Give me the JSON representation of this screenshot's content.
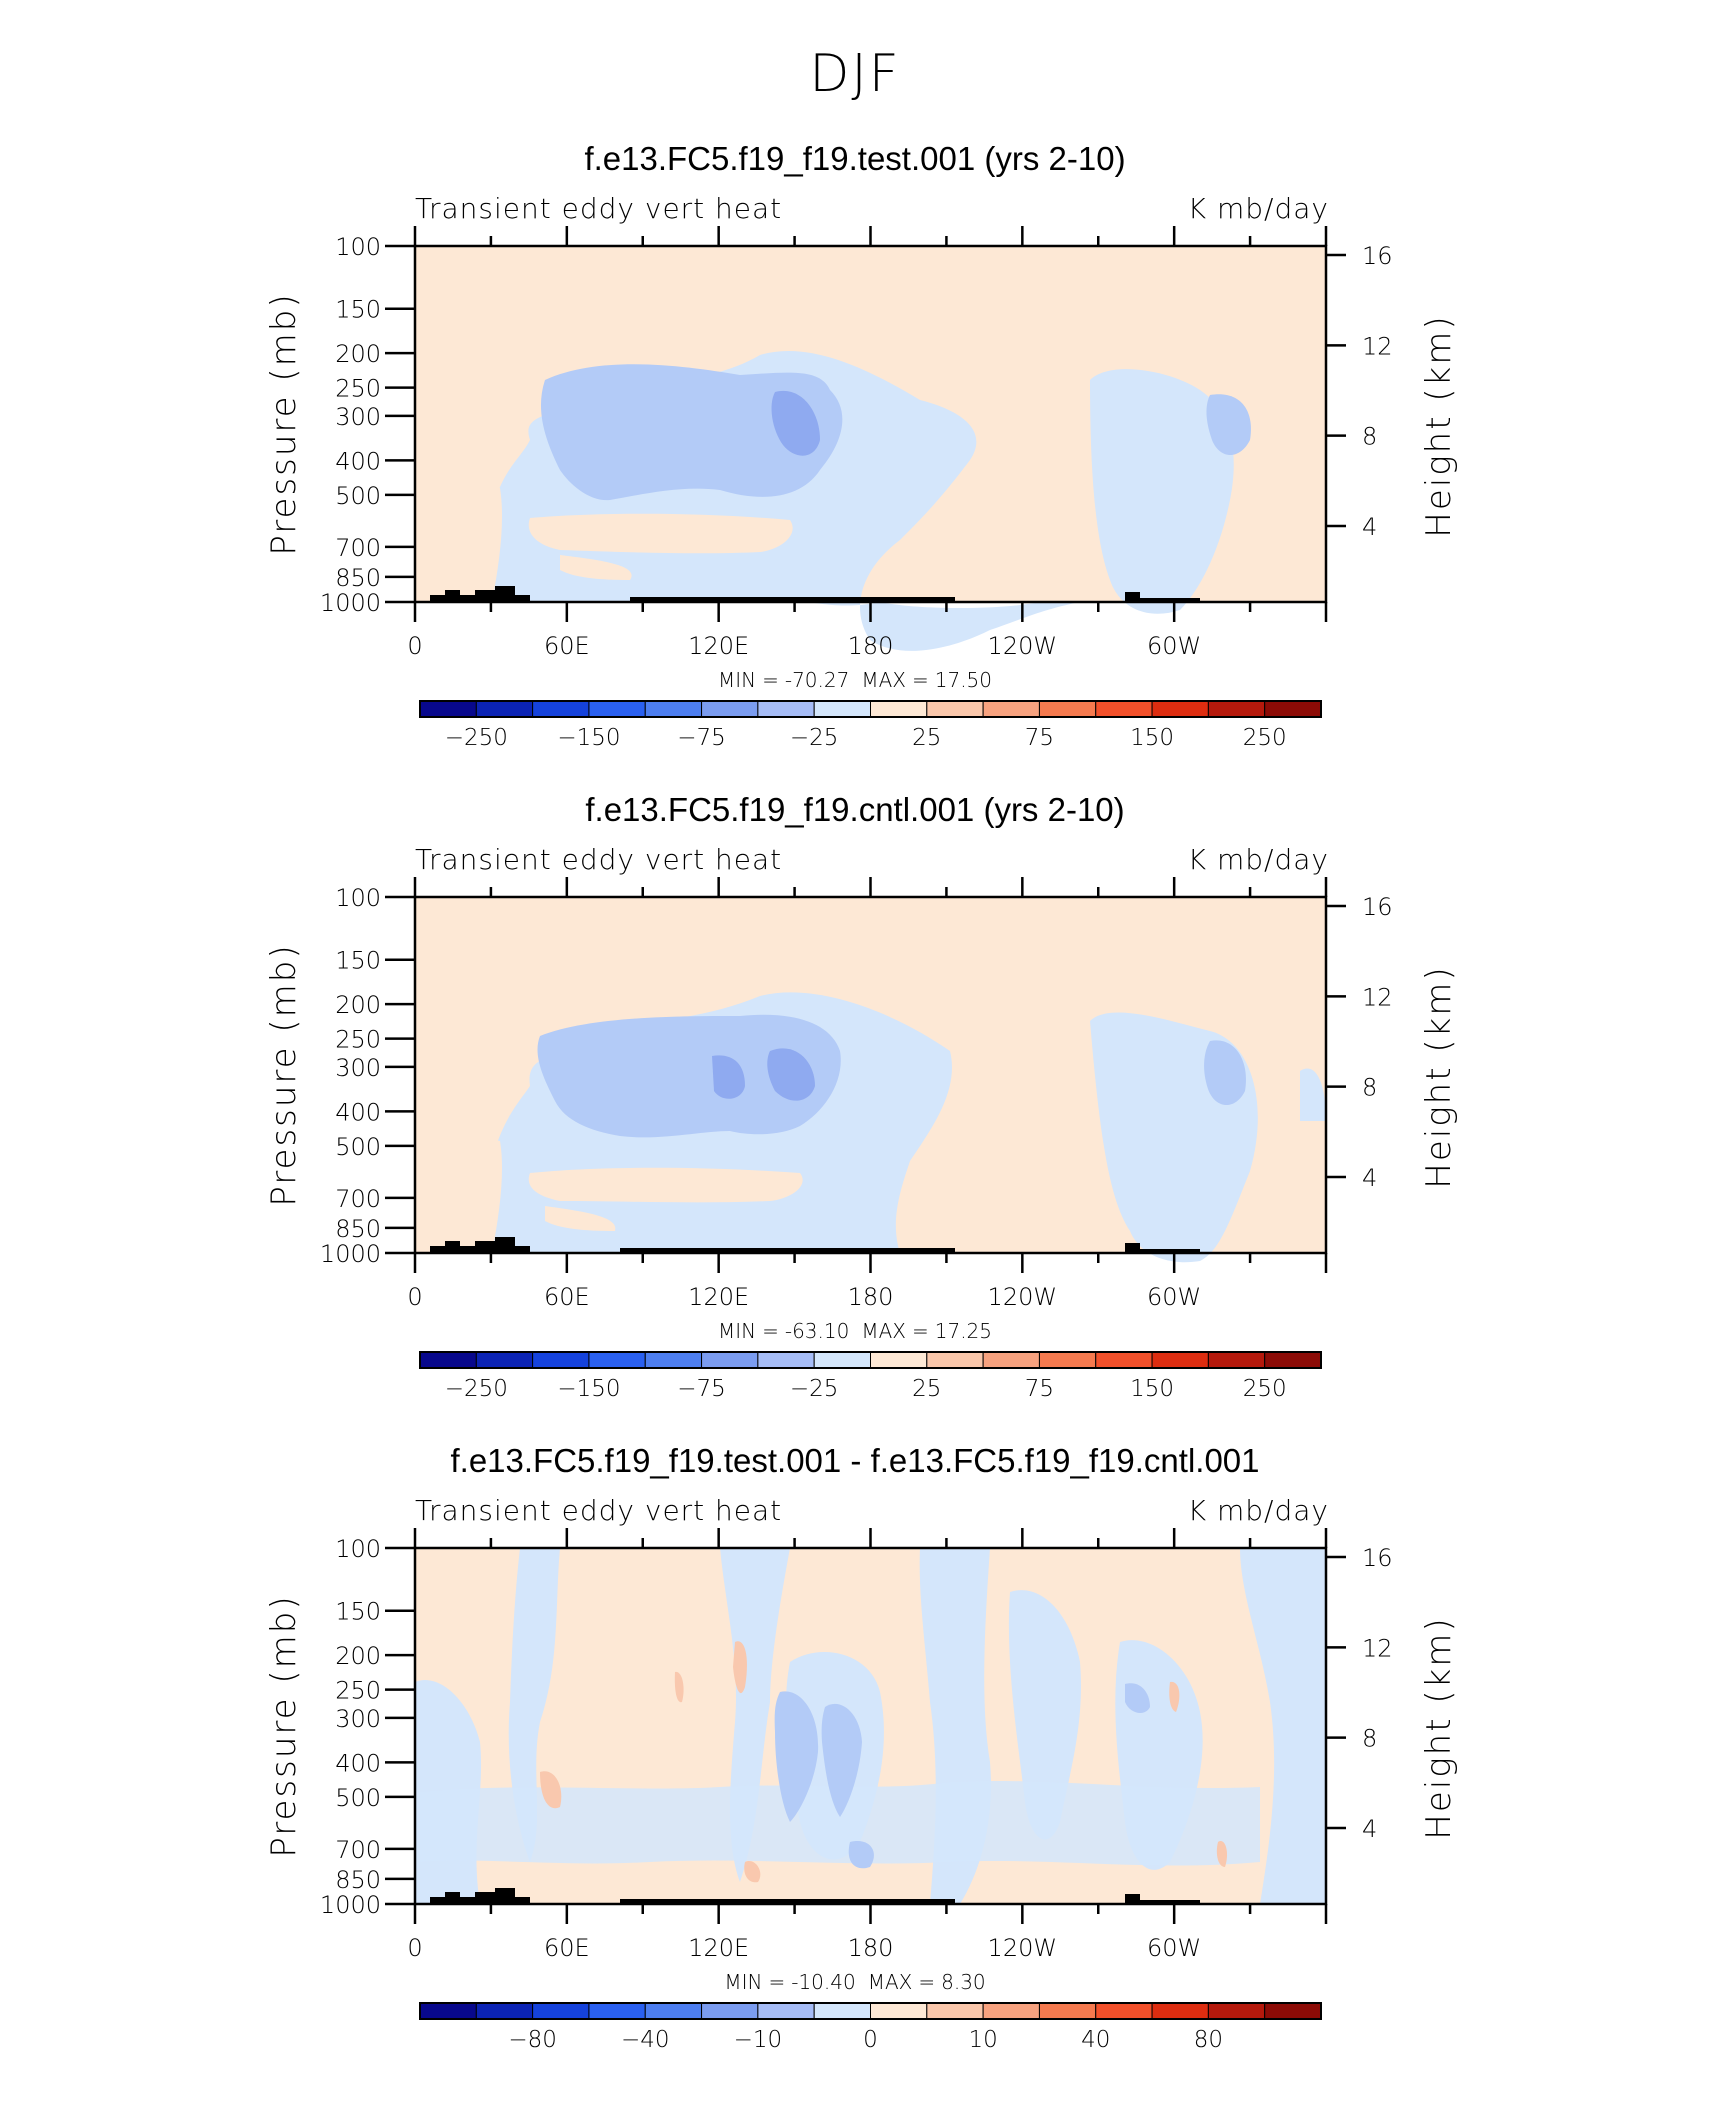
{
  "page_title": "DJF",
  "colors": {
    "pos_light": "#fde8d5",
    "neg_light": "#d4e6fb",
    "neg_mid": "#b3cbf7",
    "neg_dark": "#8faaf0",
    "neg_darker": "#7095ee",
    "pos_mid": "#f9c8ae",
    "pos_dark": "#f4a98a",
    "topo": "#000000"
  },
  "panels": [
    {
      "title": "f.e13.FC5.f19_f19.test.001 (yrs 2-10)",
      "left_string": "Transient eddy vert heat",
      "right_string": "K mb/day",
      "min_label": "MIN",
      "min_value": "-70.27",
      "max_label": "MAX",
      "max_value": "17.50",
      "colorbar_labels": [
        "−250",
        "−150",
        "−75",
        "−25",
        "25",
        "75",
        "150",
        "250"
      ]
    },
    {
      "title": "f.e13.FC5.f19_f19.cntl.001 (yrs 2-10)",
      "left_string": "Transient eddy vert heat",
      "right_string": "K mb/day",
      "min_label": "MIN",
      "min_value": "-63.10",
      "max_label": "MAX",
      "max_value": "17.25",
      "colorbar_labels": [
        "−250",
        "−150",
        "−75",
        "−25",
        "25",
        "75",
        "150",
        "250"
      ]
    },
    {
      "title": "f.e13.FC5.f19_f19.test.001 - f.e13.FC5.f19_f19.cntl.001",
      "left_string": "Transient eddy vert heat",
      "right_string": "K mb/day",
      "min_label": "MIN",
      "min_value": "-10.40",
      "max_label": "MAX",
      "max_value": "8.30",
      "colorbar_labels": [
        "−80",
        "−40",
        "−10",
        "0",
        "10",
        "40",
        "80"
      ]
    }
  ],
  "chart_data": {
    "type": "heatmap",
    "ylabel": "Pressure (mb)",
    "y2label": "Height (km)",
    "pressure_ticks": [
      "100",
      "150",
      "200",
      "250",
      "300",
      "400",
      "500",
      "700",
      "850",
      "1000"
    ],
    "pressure_values": [
      100,
      150,
      200,
      250,
      300,
      400,
      500,
      700,
      850,
      1000
    ],
    "height_ticks": [
      "16",
      "12",
      "8",
      "4"
    ],
    "height_values": [
      16,
      12,
      8,
      4
    ],
    "xticks": [
      "0",
      "60E",
      "120E",
      "180",
      "120W",
      "60W"
    ],
    "xtick_lon": [
      0,
      60,
      120,
      180,
      240,
      300
    ],
    "xlim": [
      0,
      360
    ],
    "ylim": [
      1000,
      100
    ],
    "y_scale": "log"
  }
}
